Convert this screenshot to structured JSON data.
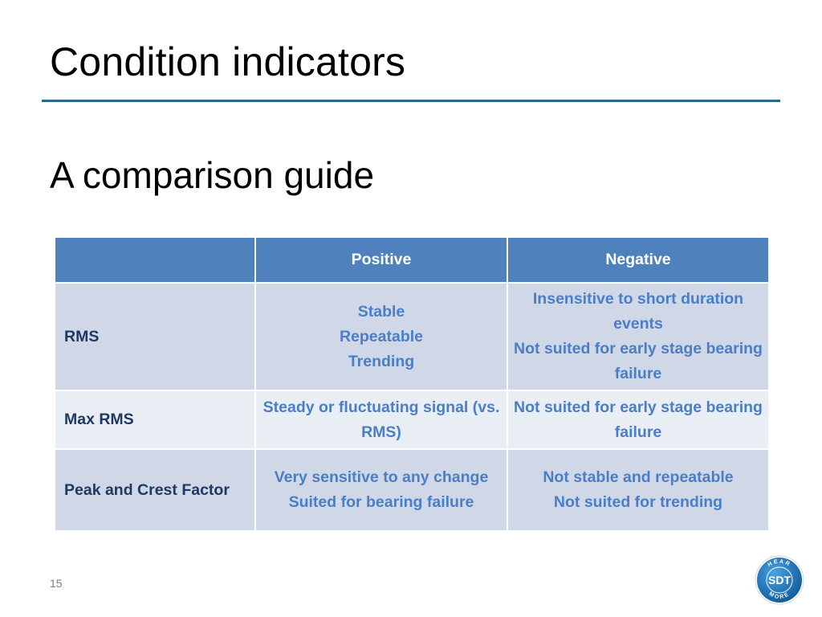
{
  "slide": {
    "title": "Condition indicators",
    "subtitle": "A comparison guide",
    "page_number": "15"
  },
  "table": {
    "headers": [
      "",
      "Positive",
      "Negative"
    ],
    "rows": [
      {
        "label": "RMS",
        "positive": [
          "Stable",
          "Repeatable",
          "Trending"
        ],
        "negative": [
          "Insensitive to short duration events",
          "Not suited for early stage bearing failure"
        ]
      },
      {
        "label": "Max RMS",
        "positive": [
          "Steady or fluctuating signal (vs. RMS)"
        ],
        "negative": [
          "Not suited for early stage bearing failure"
        ]
      },
      {
        "label": "Peak and Crest Factor",
        "positive": [
          "Very sensitive to any change",
          "Suited for bearing failure"
        ],
        "negative": [
          "Not stable and repeatable",
          "Not suited for trending"
        ]
      }
    ]
  },
  "logo": {
    "text": "SDT",
    "ring_top": "HEAR",
    "ring_bottom": "MORE"
  },
  "colors": {
    "title_rule": "#2b6a8a",
    "header_fill": "#4f81bd",
    "row_dark": "#d0d8e8",
    "row_light": "#e9edf4",
    "cell_text": "#4a7ec6",
    "label_text": "#1f3864"
  }
}
